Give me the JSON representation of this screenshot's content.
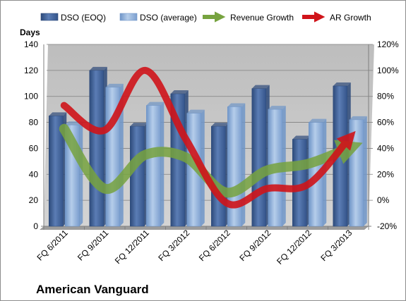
{
  "chart_data": {
    "type": "bar",
    "title": "American Vanguard",
    "ylabel": "Days",
    "categories": [
      "FQ 6/2011",
      "FQ 9/2011",
      "FQ 12/2011",
      "FQ 3/2012",
      "FQ 6/2012",
      "FQ 9/2012",
      "FQ 12/2012",
      "FQ 3/2013"
    ],
    "ylim": [
      0,
      140
    ],
    "yticks": [
      "0",
      "20",
      "40",
      "60",
      "80",
      "100",
      "120",
      "140"
    ],
    "y2lim": [
      -20,
      120
    ],
    "y2ticks": [
      "-20%",
      "0%",
      "20%",
      "40%",
      "60%",
      "80%",
      "100%",
      "120%"
    ],
    "grid": true,
    "legend_position": "top",
    "series": [
      {
        "name": "DSO (EOQ)",
        "kind": "bar",
        "axis": "left",
        "color": "#4f6fa3",
        "values": [
          85,
          120,
          77,
          102,
          77,
          106,
          67,
          108
        ]
      },
      {
        "name": "DSO (average)",
        "kind": "bar",
        "axis": "left",
        "color": "#95b3d7",
        "values": [
          78,
          107,
          93,
          87,
          92,
          90,
          80,
          82
        ]
      },
      {
        "name": "Revenue Growth",
        "kind": "line",
        "axis": "right",
        "color": "#77a33f",
        "values": [
          55,
          9,
          35,
          33,
          6,
          23,
          28,
          40
        ]
      },
      {
        "name": "AR Growth",
        "kind": "line",
        "axis": "right",
        "color": "#d0141a",
        "values": [
          73,
          54,
          100,
          47,
          -2,
          9,
          12,
          47
        ]
      }
    ]
  }
}
